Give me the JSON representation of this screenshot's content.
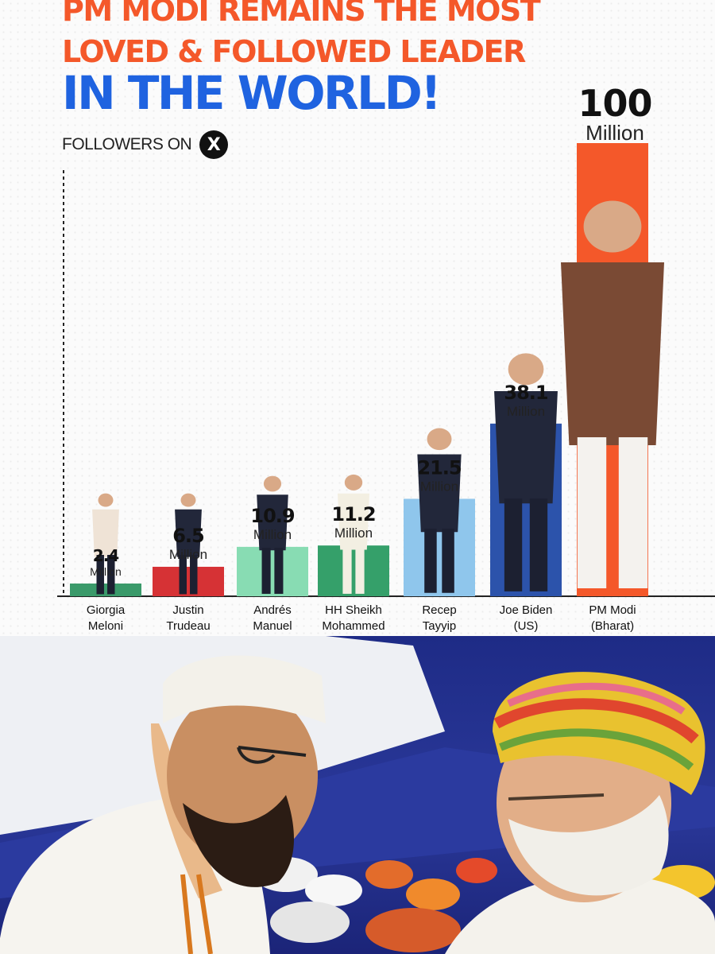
{
  "headline": {
    "line1": "PM MODI REMAINS THE MOST",
    "line2": "LOVED & FOLLOWED LEADER",
    "line3": "IN THE WORLD!",
    "orange": "#f4582a",
    "blue": "#1f63e0"
  },
  "subtitle": {
    "label": "FOLLOWERS ON",
    "platform_icon": "x-logo-icon",
    "platform_glyph": "X"
  },
  "chart_data": {
    "type": "bar",
    "title": "PM MODI REMAINS THE MOST LOVED & FOLLOWED LEADER IN THE WORLD!",
    "xlabel": "",
    "ylabel": "",
    "ylim": [
      0,
      100
    ],
    "unit_label": "Million",
    "categories": [
      [
        "Giorgia",
        "Meloni"
      ],
      [
        "Justin",
        "Trudeau"
      ],
      [
        "Andrés",
        "Manuel"
      ],
      [
        "HH Sheikh",
        "Mohammed"
      ],
      [
        "Recep",
        "Tayyip"
      ],
      [
        "Joe Biden",
        "(US)"
      ],
      [
        "PM Modi",
        "(Bharat)"
      ]
    ],
    "values": [
      2.4,
      6.5,
      10.9,
      11.2,
      21.5,
      38.1,
      100
    ],
    "value_labels": [
      "2.4",
      "6.5",
      "10.9",
      "11.2",
      "21.5",
      "38.1",
      "100"
    ],
    "colors": [
      "#3a9a6a",
      "#d63235",
      "#88dcb3",
      "#35a06a",
      "#8fc6ec",
      "#2c53ab",
      "#f4582a"
    ],
    "grid": false,
    "legend": "none"
  },
  "photo": {
    "background": "#1f2c8a",
    "caption": ""
  }
}
